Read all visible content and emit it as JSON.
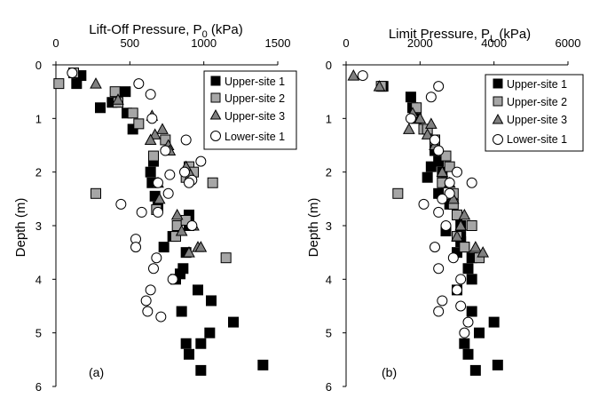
{
  "chart_data": [
    {
      "type": "scatter",
      "panel_label": "(a)",
      "title": "Lift-Off Pressure, P",
      "title_sub": "0",
      "title_unit": " (kPa)",
      "ylabel": "Depth (m)",
      "xlim": [
        0,
        1500
      ],
      "ylim": [
        0,
        6
      ],
      "xticks": [
        "0",
        "500",
        "1000",
        "1500"
      ],
      "yticks": [
        "0",
        "1",
        "2",
        "3",
        "4",
        "5",
        "6"
      ],
      "legend_position": "top-right",
      "series": [
        {
          "name": "Upper-site 1",
          "marker": "square",
          "fill": "#000000",
          "x": [
            170,
            140,
            300,
            380,
            470,
            480,
            520,
            660,
            640,
            650,
            670,
            690,
            900,
            900,
            730,
            790,
            880,
            860,
            840,
            810,
            960,
            850,
            1050,
            880,
            1200,
            1040,
            900,
            980,
            1400,
            980
          ],
          "y": [
            0.2,
            0.35,
            0.8,
            0.7,
            0.5,
            0.9,
            1.2,
            1.8,
            2.0,
            2.2,
            2.45,
            2.65,
            2.8,
            3.0,
            3.4,
            3.2,
            3.5,
            3.8,
            3.9,
            4.0,
            4.2,
            4.6,
            4.4,
            5.2,
            4.8,
            5.0,
            5.4,
            5.7,
            5.6,
            5.2
          ]
        },
        {
          "name": "Upper-site 2",
          "marker": "square",
          "fill": "#a6a6a6",
          "x": [
            120,
            20,
            400,
            420,
            520,
            560,
            740,
            660,
            900,
            880,
            930,
            1060,
            270,
            680,
            810,
            820,
            1150,
            880
          ],
          "y": [
            0.15,
            0.35,
            0.5,
            0.7,
            0.9,
            1.1,
            1.4,
            1.7,
            1.9,
            2.1,
            2.0,
            2.2,
            2.4,
            2.7,
            3.2,
            3.0,
            3.6,
            2.9
          ]
        },
        {
          "name": "Upper-site 3",
          "marker": "triangle",
          "fill": "#808080",
          "x": [
            270,
            420,
            650,
            720,
            760,
            880,
            910,
            960,
            700,
            670,
            930,
            980,
            770,
            640,
            820,
            900,
            690,
            850
          ],
          "y": [
            0.35,
            0.65,
            0.95,
            1.2,
            1.5,
            1.9,
            2.05,
            3.4,
            2.5,
            1.3,
            3.0,
            3.4,
            1.6,
            1.4,
            2.8,
            3.5,
            2.2,
            3.1
          ]
        },
        {
          "name": "Lower-site 1",
          "marker": "circle",
          "fill": "#ffffff",
          "x": [
            110,
            560,
            640,
            650,
            740,
            870,
            980,
            690,
            920,
            440,
            580,
            690,
            540,
            540,
            680,
            660,
            790,
            640,
            610,
            620,
            710,
            920,
            760,
            770,
            900,
            880
          ],
          "y": [
            0.15,
            0.35,
            0.55,
            1.0,
            1.6,
            2.0,
            1.8,
            2.2,
            2.15,
            2.6,
            2.75,
            2.75,
            3.25,
            3.4,
            3.6,
            3.8,
            4.0,
            4.2,
            4.4,
            4.6,
            4.7,
            3.0,
            2.4,
            2.05,
            2.2,
            1.4
          ]
        }
      ]
    },
    {
      "type": "scatter",
      "panel_label": "(b)",
      "title": "Limit Pressure, P",
      "title_sub": "L",
      "title_unit": " (kPa)",
      "ylabel": "Depth (m)",
      "xlim": [
        0,
        6000
      ],
      "ylim": [
        0,
        6
      ],
      "xticks": [
        "0",
        "2000",
        "4000",
        "6000"
      ],
      "yticks": [
        "0",
        "1",
        "2",
        "3",
        "4",
        "5",
        "6"
      ],
      "legend_position": "top-right",
      "series": [
        {
          "name": "Upper-site 1",
          "marker": "square",
          "fill": "#000000",
          "x": [
            1000,
            1750,
            1800,
            1900,
            2400,
            2500,
            2600,
            2700,
            2300,
            2200,
            2500,
            2800,
            3000,
            3100,
            3100,
            3200,
            3400,
            3300,
            3400,
            3000,
            3400,
            4000,
            3600,
            3200,
            4100,
            3500,
            3300,
            3100,
            3000,
            2700
          ],
          "y": [
            0.4,
            0.6,
            0.8,
            1.0,
            1.6,
            1.8,
            2.0,
            2.2,
            1.9,
            2.1,
            2.4,
            2.6,
            2.8,
            3.0,
            3.2,
            3.4,
            3.6,
            3.8,
            4.0,
            4.2,
            4.6,
            4.8,
            5.0,
            5.2,
            5.6,
            5.7,
            5.4,
            3.3,
            3.5,
            3.1
          ]
        },
        {
          "name": "Upper-site 2",
          "marker": "square",
          "fill": "#a6a6a6",
          "x": [
            950,
            1900,
            2100,
            2400,
            2700,
            2800,
            2900,
            1400,
            2900,
            3000,
            3400,
            3600,
            3000,
            2200,
            2600,
            3200
          ],
          "y": [
            0.4,
            0.8,
            1.2,
            1.4,
            1.7,
            1.9,
            2.4,
            2.4,
            2.6,
            2.8,
            3.0,
            3.6,
            3.2,
            1.2,
            2.2,
            3.4
          ]
        },
        {
          "name": "Upper-site 3",
          "marker": "triangle",
          "fill": "#808080",
          "x": [
            200,
            900,
            1800,
            2000,
            2200,
            2400,
            2600,
            2900,
            3200,
            3500,
            3700,
            3100,
            2800,
            2300,
            1700,
            3000
          ],
          "y": [
            0.2,
            0.4,
            0.9,
            1.0,
            1.3,
            1.5,
            2.0,
            2.5,
            2.8,
            3.4,
            3.5,
            3.0,
            2.2,
            1.1,
            1.2,
            3.2
          ]
        },
        {
          "name": "Lower-site 1",
          "marker": "circle",
          "fill": "#ffffff",
          "x": [
            450,
            2500,
            2300,
            1750,
            2400,
            2500,
            2800,
            3000,
            3400,
            2800,
            2600,
            2100,
            2500,
            2700,
            2400,
            2500,
            3100,
            3000,
            2600,
            2500,
            3300,
            3200,
            3100,
            2900
          ],
          "y": [
            0.2,
            0.4,
            0.6,
            1.0,
            1.4,
            1.6,
            2.2,
            2.0,
            2.2,
            2.4,
            2.5,
            2.6,
            2.75,
            3.0,
            3.4,
            3.8,
            4.0,
            4.2,
            4.4,
            4.6,
            4.8,
            5.0,
            4.5,
            3.6
          ]
        }
      ]
    }
  ]
}
